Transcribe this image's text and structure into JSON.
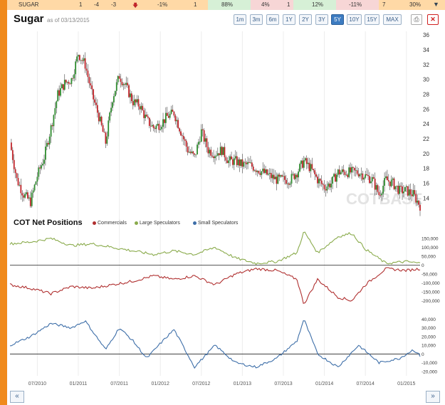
{
  "ticker": {
    "name": "SUGAR",
    "cells": [
      "1",
      "-4",
      "-3",
      "-1%",
      "1",
      "88%",
      "4%",
      "1",
      "12%",
      "-11%",
      "7",
      "30%"
    ]
  },
  "header": {
    "title": "Sugar",
    "asof": "as of 03/13/2015"
  },
  "ranges": [
    "1m",
    "3m",
    "6m",
    "1Y",
    "2Y",
    "3Y",
    "5Y",
    "10Y",
    "15Y",
    "MAX"
  ],
  "active_range": "5Y",
  "watermark": "COTBASE",
  "cot": {
    "title": "COT Net Positions"
  },
  "nav": {
    "prev": "«",
    "next": "»"
  },
  "colors": {
    "up": "#2e8b2e",
    "down": "#c0242a",
    "commercials": "#b03030",
    "large_spec": "#8aab4c",
    "small_spec": "#3d6ea8",
    "accent": "#f08a1c"
  },
  "chart_data": [
    {
      "type": "candlestick",
      "title": "Sugar",
      "ylim": [
        12.5,
        36.5
      ],
      "yticks": [
        14,
        16,
        18,
        20,
        22,
        24,
        26,
        28,
        30,
        32,
        34,
        36
      ],
      "points": [
        [
          "2010-03",
          21.5
        ],
        [
          "2010-04",
          16.5
        ],
        [
          "2010-05",
          14.5
        ],
        [
          "2010-06",
          13.5
        ],
        [
          "2010-07",
          17.0
        ],
        [
          "2010-08",
          19.5
        ],
        [
          "2010-09",
          23.5
        ],
        [
          "2010-10",
          28.0
        ],
        [
          "2010-11",
          29.5
        ],
        [
          "2010-12",
          30.0
        ],
        [
          "2011-01",
          33.5
        ],
        [
          "2011-02",
          32.0
        ],
        [
          "2011-03",
          28.0
        ],
        [
          "2011-04",
          25.0
        ],
        [
          "2011-05",
          21.5
        ],
        [
          "2011-06",
          27.5
        ],
        [
          "2011-07",
          30.5
        ],
        [
          "2011-08",
          29.0
        ],
        [
          "2011-09",
          27.0
        ],
        [
          "2011-10",
          26.5
        ],
        [
          "2011-11",
          24.5
        ],
        [
          "2011-12",
          23.5
        ],
        [
          "2012-01",
          24.0
        ],
        [
          "2012-02",
          25.0
        ],
        [
          "2012-03",
          25.5
        ],
        [
          "2012-04",
          23.0
        ],
        [
          "2012-05",
          20.5
        ],
        [
          "2012-06",
          19.5
        ],
        [
          "2012-07",
          23.0
        ],
        [
          "2012-08",
          20.5
        ],
        [
          "2012-09",
          20.0
        ],
        [
          "2012-10",
          20.5
        ],
        [
          "2012-11",
          19.0
        ],
        [
          "2012-12",
          19.0
        ],
        [
          "2013-01",
          18.5
        ],
        [
          "2013-02",
          18.5
        ],
        [
          "2013-03",
          18.0
        ],
        [
          "2013-04",
          17.5
        ],
        [
          "2013-05",
          17.0
        ],
        [
          "2013-06",
          16.5
        ],
        [
          "2013-07",
          16.5
        ],
        [
          "2013-08",
          16.5
        ],
        [
          "2013-09",
          17.5
        ],
        [
          "2013-10",
          19.0
        ],
        [
          "2013-11",
          18.0
        ],
        [
          "2013-12",
          16.5
        ],
        [
          "2014-01",
          15.5
        ],
        [
          "2014-02",
          16.0
        ],
        [
          "2014-03",
          17.5
        ],
        [
          "2014-04",
          17.5
        ],
        [
          "2014-05",
          17.5
        ],
        [
          "2014-06",
          17.5
        ],
        [
          "2014-07",
          17.0
        ],
        [
          "2014-08",
          16.5
        ],
        [
          "2014-09",
          14.5
        ],
        [
          "2014-10",
          16.5
        ],
        [
          "2014-11",
          16.0
        ],
        [
          "2014-12",
          15.0
        ],
        [
          "2015-01",
          15.0
        ],
        [
          "2015-02",
          14.5
        ],
        [
          "2015-03",
          13.0
        ]
      ]
    },
    {
      "type": "line",
      "title": "COT Net Positions",
      "ylim": [
        -230000,
        190000
      ],
      "yticks": [
        150000,
        100000,
        50000,
        0,
        -50000,
        -100000,
        -150000,
        -200000
      ],
      "series": [
        {
          "name": "Commercials",
          "values": [
            [
              "2010-03",
              -110000
            ],
            [
              "2010-06",
              -130000
            ],
            [
              "2010-09",
              -160000
            ],
            [
              "2010-12",
              -120000
            ],
            [
              "2011-03",
              -130000
            ],
            [
              "2011-06",
              -110000
            ],
            [
              "2011-09",
              -90000
            ],
            [
              "2011-12",
              -60000
            ],
            [
              "2012-03",
              -80000
            ],
            [
              "2012-06",
              -60000
            ],
            [
              "2012-09",
              -110000
            ],
            [
              "2012-12",
              -50000
            ],
            [
              "2013-03",
              -20000
            ],
            [
              "2013-06",
              -30000
            ],
            [
              "2013-09",
              -80000
            ],
            [
              "2013-10",
              -220000
            ],
            [
              "2013-12",
              -80000
            ],
            [
              "2014-03",
              -180000
            ],
            [
              "2014-05",
              -200000
            ],
            [
              "2014-07",
              -110000
            ],
            [
              "2014-10",
              -20000
            ],
            [
              "2015-01",
              -30000
            ],
            [
              "2015-03",
              -20000
            ]
          ]
        },
        {
          "name": "Large Speculators",
          "values": [
            [
              "2010-03",
              120000
            ],
            [
              "2010-06",
              130000
            ],
            [
              "2010-09",
              150000
            ],
            [
              "2010-12",
              110000
            ],
            [
              "2011-03",
              120000
            ],
            [
              "2011-06",
              100000
            ],
            [
              "2011-09",
              80000
            ],
            [
              "2011-12",
              60000
            ],
            [
              "2012-03",
              80000
            ],
            [
              "2012-06",
              60000
            ],
            [
              "2012-09",
              100000
            ],
            [
              "2012-12",
              40000
            ],
            [
              "2013-03",
              10000
            ],
            [
              "2013-06",
              20000
            ],
            [
              "2013-09",
              70000
            ],
            [
              "2013-10",
              190000
            ],
            [
              "2013-12",
              70000
            ],
            [
              "2014-03",
              160000
            ],
            [
              "2014-05",
              180000
            ],
            [
              "2014-07",
              90000
            ],
            [
              "2014-10",
              10000
            ],
            [
              "2015-01",
              20000
            ],
            [
              "2015-03",
              10000
            ]
          ]
        }
      ]
    },
    {
      "type": "line",
      "ylim": [
        -25000,
        50000
      ],
      "yticks": [
        40000,
        30000,
        20000,
        10000,
        0,
        -10000,
        -20000
      ],
      "series": [
        {
          "name": "Small Speculators",
          "values": [
            [
              "2010-03",
              10000
            ],
            [
              "2010-06",
              20000
            ],
            [
              "2010-09",
              35000
            ],
            [
              "2010-12",
              30000
            ],
            [
              "2011-02",
              38000
            ],
            [
              "2011-05",
              5000
            ],
            [
              "2011-07",
              30000
            ],
            [
              "2011-09",
              15000
            ],
            [
              "2011-11",
              -5000
            ],
            [
              "2012-01",
              12000
            ],
            [
              "2012-03",
              28000
            ],
            [
              "2012-06",
              -15000
            ],
            [
              "2012-09",
              10000
            ],
            [
              "2012-12",
              -10000
            ],
            [
              "2013-03",
              -15000
            ],
            [
              "2013-06",
              -5000
            ],
            [
              "2013-09",
              15000
            ],
            [
              "2013-10",
              40000
            ],
            [
              "2013-12",
              0
            ],
            [
              "2014-03",
              -15000
            ],
            [
              "2014-06",
              10000
            ],
            [
              "2014-09",
              -10000
            ],
            [
              "2014-12",
              -5000
            ],
            [
              "2015-02",
              5000
            ],
            [
              "2015-03",
              -2000
            ]
          ]
        }
      ]
    }
  ],
  "x_axis": {
    "labels": [
      "07/2010",
      "01/2011",
      "07/2011",
      "01/2012",
      "07/2012",
      "01/2013",
      "07/2013",
      "01/2014",
      "07/2014",
      "01/2015"
    ]
  }
}
